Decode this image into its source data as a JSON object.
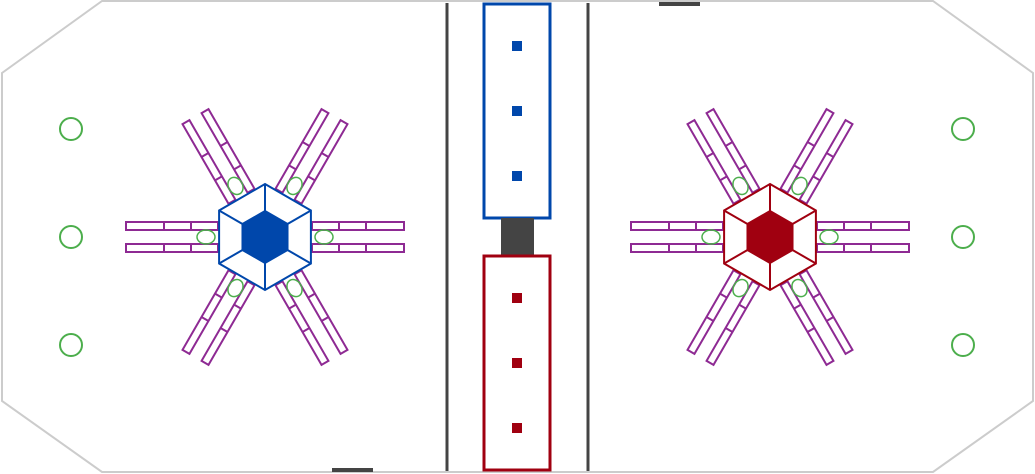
{
  "colors": {
    "boundary": "#cccccc",
    "divider": "#444444",
    "blue": "#0047ab",
    "red": "#a00010",
    "truss": "#8e2a93",
    "marker": "#4cae4c",
    "block": "#444444"
  },
  "alliances": [
    {
      "id": "blue",
      "hub_icon": "hexagon-hub",
      "arms": 6
    },
    {
      "id": "red",
      "hub_icon": "hexagon-hub",
      "arms": 6
    }
  ],
  "zone_markers_per_side": 3,
  "center_zone_squares": 3
}
